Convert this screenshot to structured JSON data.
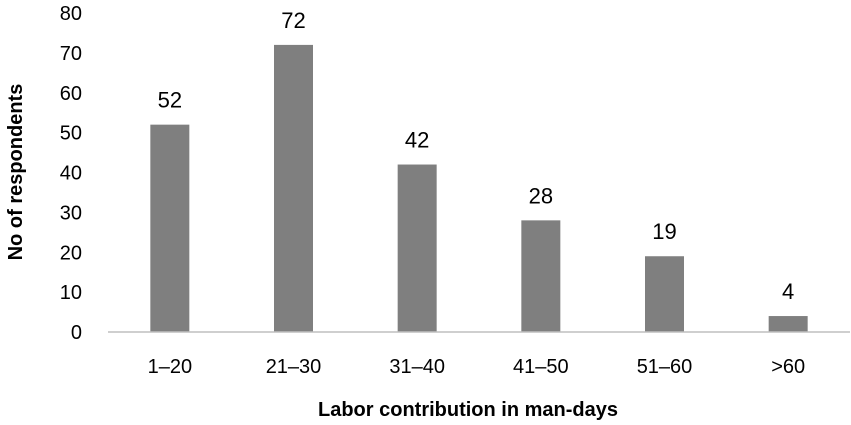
{
  "chart_data": {
    "type": "bar",
    "categories": [
      "1–20",
      "21–30",
      "31–40",
      "41–50",
      "51–60",
      ">60"
    ],
    "values": [
      52,
      72,
      42,
      28,
      19,
      4
    ],
    "data_labels": [
      "52",
      "72",
      "42",
      "28",
      "19",
      "4"
    ],
    "title": "",
    "xlabel": "Labor contribution in man-days",
    "ylabel": "No of respondents",
    "ylim": [
      0,
      80
    ],
    "yticks": [
      0,
      10,
      20,
      30,
      40,
      50,
      60,
      70,
      80
    ],
    "ytick_labels": [
      "0",
      "10",
      "20",
      "30",
      "40",
      "50",
      "60",
      "70",
      "80"
    ],
    "grid": false,
    "legend": "none",
    "bar_color": "#7f7f7f"
  }
}
